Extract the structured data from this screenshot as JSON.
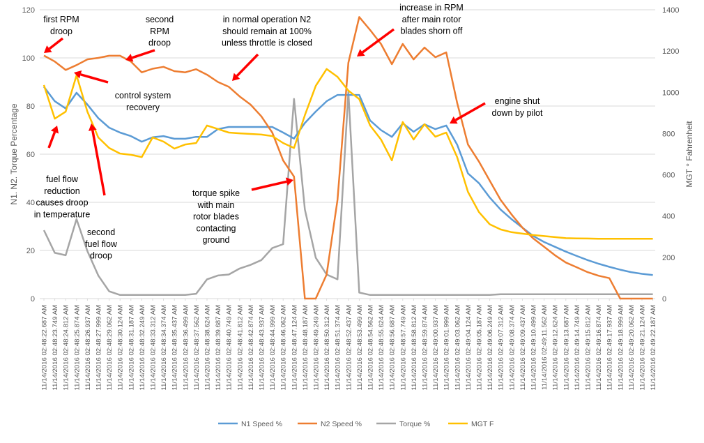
{
  "chart_data": {
    "type": "line",
    "title": "",
    "xlabel": "",
    "ylabel": "N1. N2. Torque Percentage",
    "y2label": "MGT ° Fahrenheit",
    "ylim": [
      0,
      120
    ],
    "yticks": [
      0,
      20,
      40,
      60,
      80,
      100,
      120
    ],
    "y2lim": [
      0,
      1400
    ],
    "y2ticks": [
      0,
      200,
      400,
      600,
      800,
      1000,
      1200,
      1400
    ],
    "grid": true,
    "legend": "bottom",
    "categories": [
      "11/14/2016 02:48:22.687 AM",
      "11/14/2016 02:48:23.749 AM",
      "11/14/2016 02:48:24.812 AM",
      "11/14/2016 02:48:25.874 AM",
      "11/14/2016 02:48:26.937 AM",
      "11/14/2016 02:48:27.999 AM",
      "11/14/2016 02:48:29.062 AM",
      "11/14/2016 02:48:30.124 AM",
      "11/14/2016 02:48:31.187 AM",
      "11/14/2016 02:48:32.249 AM",
      "11/14/2016 02:48:33.312 AM",
      "11/14/2016 02:48:34.374 AM",
      "11/14/2016 02:48:35.437 AM",
      "11/14/2016 02:48:36.499 AM",
      "11/14/2016 02:48:37.562 AM",
      "11/14/2016 02:48:38.624 AM",
      "11/14/2016 02:48:39.687 AM",
      "11/14/2016 02:48:40.749 AM",
      "11/14/2016 02:48:41.812 AM",
      "11/14/2016 02:48:42.874 AM",
      "11/14/2016 02:48:43.937 AM",
      "11/14/2016 02:48:44.999 AM",
      "11/14/2016 02:48:46.062 AM",
      "11/14/2016 02:48:47.124 AM",
      "11/14/2016 02:48:48.187 AM",
      "11/14/2016 02:48:49.249 AM",
      "11/14/2016 02:48:50.312 AM",
      "11/14/2016 02:48:51.374 AM",
      "11/14/2016 02:48:52.437 AM",
      "11/14/2016 02:48:53.499 AM",
      "11/14/2016 02:48:54.562 AM",
      "11/14/2016 02:48:55.624 AM",
      "11/14/2016 02:48:56.687 AM",
      "11/14/2016 02:48:57.749 AM",
      "11/14/2016 02:48:58.812 AM",
      "11/14/2016 02:48:59.874 AM",
      "11/14/2016 02:49:00.937 AM",
      "11/14/2016 02:49:01.999 AM",
      "11/14/2016 02:49:03.062 AM",
      "11/14/2016 02:49:04.124 AM",
      "11/14/2016 02:49:05.187 AM",
      "11/14/2016 02:49:06.249 AM",
      "11/14/2016 02:49:07.312 AM",
      "11/14/2016 02:49:08.374 AM",
      "11/14/2016 02:49:09.437 AM",
      "11/14/2016 02:49:10.499 AM",
      "11/14/2016 02:49:11.562 AM",
      "11/14/2016 02:49:12.624 AM",
      "11/14/2016 02:49:13.687 AM",
      "11/14/2016 02:49:14.749 AM",
      "11/14/2016 02:49:15.812 AM",
      "11/14/2016 02:49:16.874 AM",
      "11/14/2016 02:49:17.937 AM",
      "11/14/2016 02:49:18.999 AM",
      "11/14/2016 02:49:20.062 AM",
      "11/14/2016 02:49:21.124 AM",
      "11/14/2016 02:49:22.187 AM"
    ],
    "series": [
      {
        "name": "N1 Speed %",
        "axis": "left",
        "color": "#5B9BD5",
        "values": [
          88,
          82,
          79,
          85.5,
          80.6,
          75,
          71,
          69,
          67.5,
          65.2,
          67,
          67.5,
          66.4,
          66.4,
          67.2,
          67.2,
          70.4,
          71.3,
          71.3,
          71.3,
          71.3,
          71.3,
          69,
          66.5,
          73,
          77.7,
          82,
          84.6,
          84.6,
          84.6,
          74,
          70,
          67.2,
          72.8,
          69.3,
          72.4,
          70.4,
          71.9,
          64,
          52,
          48,
          42,
          37,
          33,
          29.5,
          26,
          23.5,
          21.5,
          19.5,
          17.7,
          16,
          14.5,
          13.2,
          12,
          11,
          10.3,
          9.8
        ]
      },
      {
        "name": "N2 Speed %",
        "axis": "left",
        "color": "#ED7D31",
        "values": [
          101,
          98.5,
          95,
          97,
          99.4,
          100,
          100.9,
          100.9,
          98.5,
          94,
          95.5,
          96.3,
          94.5,
          94,
          95.3,
          93,
          90,
          88,
          84,
          80.6,
          75.7,
          69,
          57.4,
          50.7,
          0,
          0,
          10,
          41,
          98,
          117,
          111.6,
          105.8,
          97.4,
          105.8,
          99.4,
          104.3,
          100.3,
          102.3,
          81.4,
          64,
          57,
          49,
          41,
          35,
          29.5,
          25,
          21.5,
          18,
          15,
          13,
          11,
          9.5,
          8.5,
          0,
          0,
          0,
          0
        ]
      },
      {
        "name": "Torque %",
        "axis": "left",
        "color": "#A5A5A5",
        "values": [
          28.4,
          19,
          18,
          33,
          19.7,
          9.6,
          3,
          1.5,
          1.5,
          1.5,
          1.5,
          1.5,
          1.5,
          1.5,
          2,
          8,
          9.6,
          10,
          12.5,
          14,
          16,
          21,
          22.6,
          83,
          37,
          17,
          10,
          8,
          86,
          2.5,
          1.5,
          1.5,
          1.5,
          1.5,
          1.5,
          1.5,
          1.5,
          1.5,
          1.5,
          1.5,
          1.5,
          1.5,
          1.8,
          1.8,
          1.8,
          1.8,
          1.8,
          1.8,
          1.8,
          1.8,
          1.8,
          1.8,
          1.8,
          1.8,
          1.8,
          1.8,
          1.8
        ]
      },
      {
        "name": "MGT F",
        "axis": "right",
        "color": "#FFC000",
        "values": [
          1035,
          872,
          906,
          1082,
          906,
          781,
          730,
          703,
          697,
          686,
          781,
          761,
          727,
          747,
          754,
          839,
          822,
          805,
          801,
          798,
          795,
          788,
          754,
          730,
          889,
          1031,
          1113,
          1075,
          1008,
          967,
          839,
          771,
          670,
          856,
          771,
          845,
          785,
          805,
          686,
          517,
          420,
          360,
          335,
          322,
          315,
          308,
          303,
          298,
          293,
          292,
          291,
          290,
          290,
          290,
          290,
          290,
          290
        ]
      }
    ],
    "annotations": [
      {
        "lines": [
          "first RPM",
          "droop"
        ]
      },
      {
        "lines": [
          "second",
          "RPM",
          "droop"
        ]
      },
      {
        "lines": [
          "in normal operation N2",
          "should remain at 100%",
          "unless throttle is closed"
        ]
      },
      {
        "lines": [
          "increase in RPM",
          "after main rotor",
          "blades shorn off"
        ]
      },
      {
        "lines": [
          "control system",
          "recovery"
        ]
      },
      {
        "lines": [
          "engine shut",
          "down by pilot"
        ]
      },
      {
        "lines": [
          "fuel flow",
          "reduction",
          "causes droop",
          "in temperature"
        ]
      },
      {
        "lines": [
          "second",
          "fuel flow",
          "droop"
        ]
      },
      {
        "lines": [
          "torque spike",
          "with main",
          "rotor blades",
          "contacting",
          "ground"
        ]
      }
    ],
    "annotation_color": "#FF0000"
  }
}
